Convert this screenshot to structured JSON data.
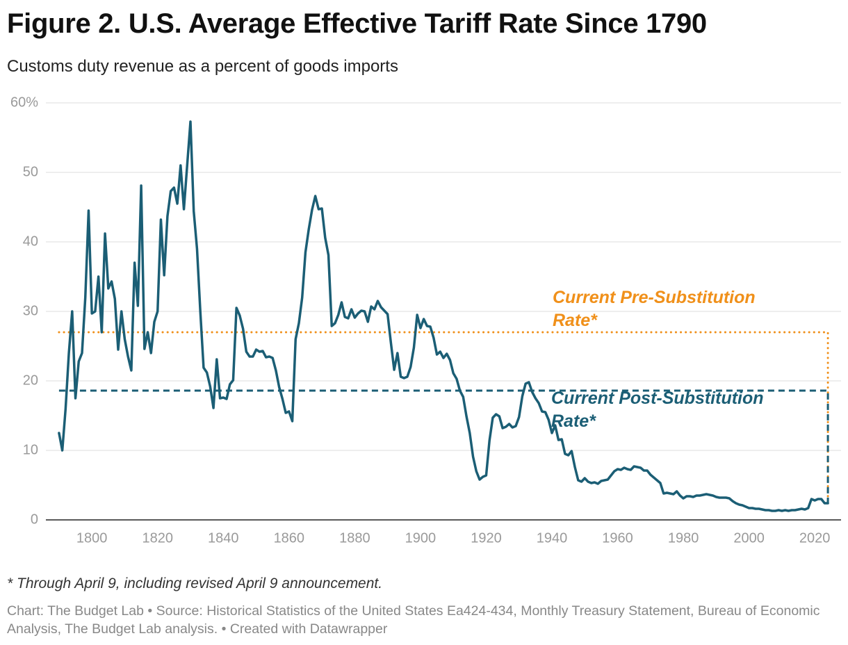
{
  "chart_data": {
    "type": "line",
    "title": "Figure 2. U.S. Average Effective Tariff Rate Since 1790",
    "subtitle": "Customs duty revenue as a percent of goods imports",
    "footnote": "* Through April 9, including revised April 9 announcement.",
    "source": "Chart: The Budget Lab • Source: Historical Statistics of the United States Ea424-434, Monthly Treasury Statement, Bureau of Economic Analysis, The Budget Lab analysis. • Created with Datawrapper",
    "xlim": [
      1786,
      2028
    ],
    "xticks": [
      1800,
      1820,
      1840,
      1860,
      1880,
      1900,
      1920,
      1940,
      1960,
      1980,
      2000,
      2020
    ],
    "ylim": [
      0,
      60
    ],
    "yticks": [
      0,
      10,
      20,
      30,
      40,
      50,
      {
        "value": 60,
        "label": "60%"
      }
    ],
    "grid": true,
    "series": [
      {
        "color": "#1b5e75",
        "line_style": "solid",
        "x": [
          1790,
          1791,
          1792,
          1793,
          1794,
          1795,
          1796,
          1797,
          1798,
          1799,
          1800,
          1801,
          1802,
          1803,
          1804,
          1805,
          1806,
          1807,
          1808,
          1809,
          1810,
          1811,
          1812,
          1813,
          1814,
          1815,
          1816,
          1817,
          1818,
          1819,
          1820,
          1821,
          1822,
          1823,
          1824,
          1825,
          1826,
          1827,
          1828,
          1829,
          1830,
          1831,
          1832,
          1833,
          1834,
          1835,
          1836,
          1837,
          1838,
          1839,
          1840,
          1841,
          1842,
          1843,
          1844,
          1845,
          1846,
          1847,
          1848,
          1849,
          1850,
          1851,
          1852,
          1853,
          1854,
          1855,
          1856,
          1857,
          1858,
          1859,
          1860,
          1861,
          1862,
          1863,
          1864,
          1865,
          1866,
          1867,
          1868,
          1869,
          1870,
          1871,
          1872,
          1873,
          1874,
          1875,
          1876,
          1877,
          1878,
          1879,
          1880,
          1881,
          1882,
          1883,
          1884,
          1885,
          1886,
          1887,
          1888,
          1889,
          1890,
          1891,
          1892,
          1893,
          1894,
          1895,
          1896,
          1897,
          1898,
          1899,
          1900,
          1901,
          1902,
          1903,
          1904,
          1905,
          1906,
          1907,
          1908,
          1909,
          1910,
          1911,
          1912,
          1913,
          1914,
          1915,
          1916,
          1917,
          1918,
          1919,
          1920,
          1921,
          1922,
          1923,
          1924,
          1925,
          1926,
          1927,
          1928,
          1929,
          1930,
          1931,
          1932,
          1933,
          1934,
          1935,
          1936,
          1937,
          1938,
          1939,
          1940,
          1941,
          1942,
          1943,
          1944,
          1945,
          1946,
          1947,
          1948,
          1949,
          1950,
          1951,
          1952,
          1953,
          1954,
          1955,
          1956,
          1957,
          1958,
          1959,
          1960,
          1961,
          1962,
          1963,
          1964,
          1965,
          1966,
          1967,
          1968,
          1969,
          1970,
          1971,
          1972,
          1973,
          1974,
          1975,
          1976,
          1977,
          1978,
          1979,
          1980,
          1981,
          1982,
          1983,
          1984,
          1985,
          1986,
          1987,
          1988,
          1989,
          1990,
          1991,
          1992,
          1993,
          1994,
          1995,
          1996,
          1997,
          1998,
          1999,
          2000,
          2001,
          2002,
          2003,
          2004,
          2005,
          2006,
          2007,
          2008,
          2009,
          2010,
          2011,
          2012,
          2013,
          2014,
          2015,
          2016,
          2017,
          2018,
          2019,
          2020,
          2021,
          2022,
          2023,
          2024
        ],
        "values": [
          12.5,
          10,
          16,
          24,
          30,
          17.5,
          22.8,
          24,
          32,
          44.5,
          29.7,
          30,
          35,
          27,
          41.2,
          33.3,
          34.3,
          31.8,
          24.5,
          30,
          26,
          23.5,
          21.5,
          37,
          30.8,
          48.1,
          24.6,
          27,
          24,
          28.5,
          30,
          43.2,
          35.2,
          43.7,
          47.3,
          47.8,
          45.5,
          51,
          44.7,
          51,
          57.3,
          44.4,
          39,
          30,
          21.9,
          21.2,
          19.2,
          16.1,
          23.1,
          17.5,
          17.6,
          17.4,
          19.5,
          20.1,
          30.5,
          29.4,
          27.5,
          24.2,
          23.5,
          23.5,
          24.5,
          24.2,
          24.3,
          23.4,
          23.5,
          23.3,
          21.5,
          19.1,
          17.4,
          15.4,
          15.6,
          14.2,
          26,
          28.3,
          32,
          38.5,
          41.8,
          44.6,
          46.6,
          44.7,
          44.8,
          40.6,
          38.1,
          27.9,
          28.3,
          29.5,
          31.3,
          29.2,
          29,
          30.3,
          29.1,
          29.7,
          30.1,
          30,
          28.5,
          30.7,
          30.3,
          31.5,
          30.6,
          30.1,
          29.6,
          25.5,
          21.6,
          24,
          20.6,
          20.4,
          20.6,
          22,
          24.8,
          29.5,
          27.6,
          28.9,
          27.9,
          27.8,
          26.2,
          23.8,
          24.2,
          23.3,
          23.9,
          23,
          21.1,
          20.3,
          18.6,
          17.7,
          14.9,
          12.5,
          9.1,
          7,
          5.8,
          6.2,
          6.4,
          11.4,
          14.7,
          15.2,
          14.9,
          13.2,
          13.4,
          13.8,
          13.3,
          13.5,
          14.8,
          17.8,
          19.6,
          19.8,
          18.4,
          17.5,
          16.8,
          15.6,
          15.5,
          14.4,
          12.5,
          13.6,
          11.5,
          11.6,
          9.5,
          9.3,
          9.9,
          7.6,
          5.7,
          5.5,
          6,
          5.5,
          5.3,
          5.4,
          5.2,
          5.6,
          5.7,
          5.8,
          6.4,
          7,
          7.3,
          7.2,
          7.5,
          7.3,
          7.2,
          7.7,
          7.6,
          7.5,
          7.1,
          7.1,
          6.5,
          6.1,
          5.7,
          5.3,
          3.8,
          3.9,
          3.8,
          3.7,
          4.1,
          3.5,
          3.1,
          3.4,
          3.4,
          3.3,
          3.5,
          3.5,
          3.6,
          3.7,
          3.6,
          3.5,
          3.3,
          3.2,
          3.2,
          3.2,
          3.1,
          2.7,
          2.4,
          2.2,
          2.1,
          1.9,
          1.7,
          1.7,
          1.6,
          1.6,
          1.5,
          1.4,
          1.4,
          1.3,
          1.3,
          1.4,
          1.3,
          1.4,
          1.3,
          1.4,
          1.4,
          1.5,
          1.6,
          1.5,
          1.7,
          3,
          2.8,
          3,
          3,
          2.4,
          2.4
        ]
      },
      {
        "name": "Current Pre-Substitution Rate*",
        "color": "#f0901a",
        "line_style": "dotted",
        "x": [
          1790,
          2024,
          2024
        ],
        "values": [
          27,
          27,
          2.4
        ]
      },
      {
        "name": "Current Post-Substitution Rate*",
        "color": "#1b5e75",
        "line_style": "dashed",
        "x": [
          1790,
          2024,
          2024
        ],
        "values": [
          18.6,
          18.6,
          2.4
        ]
      }
    ]
  }
}
